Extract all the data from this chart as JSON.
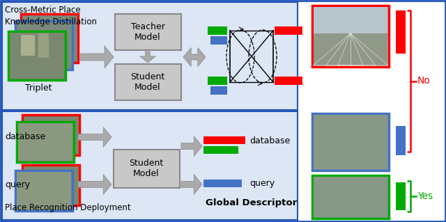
{
  "fig_width": 6.4,
  "fig_height": 3.19,
  "dpi": 100,
  "bg_color": "#ffffff",
  "section_bg": "#dce6f5",
  "color_border_blue": "#2255bb",
  "color_red": "#ff0000",
  "color_green": "#00aa00",
  "color_blue": "#4472c4",
  "color_box_bg": "#c8c8c8",
  "color_box_border": "#888888",
  "color_arrow": "#aaaaaa",
  "title_top": "Cross-Metric Place\nKnowledge Distillation",
  "title_bottom": "Place Recognition Deployment",
  "label_teacher": "Teacher\nModel",
  "label_student_top": "Student\nModel",
  "label_student_bottom": "Student\nModel",
  "label_triplet": "Triplet",
  "label_database": "database",
  "label_query": "query",
  "label_global": "Global Descriptor",
  "label_no": "No",
  "label_yes": "Yes",
  "label_db_desc": "database",
  "label_q_desc": "query"
}
